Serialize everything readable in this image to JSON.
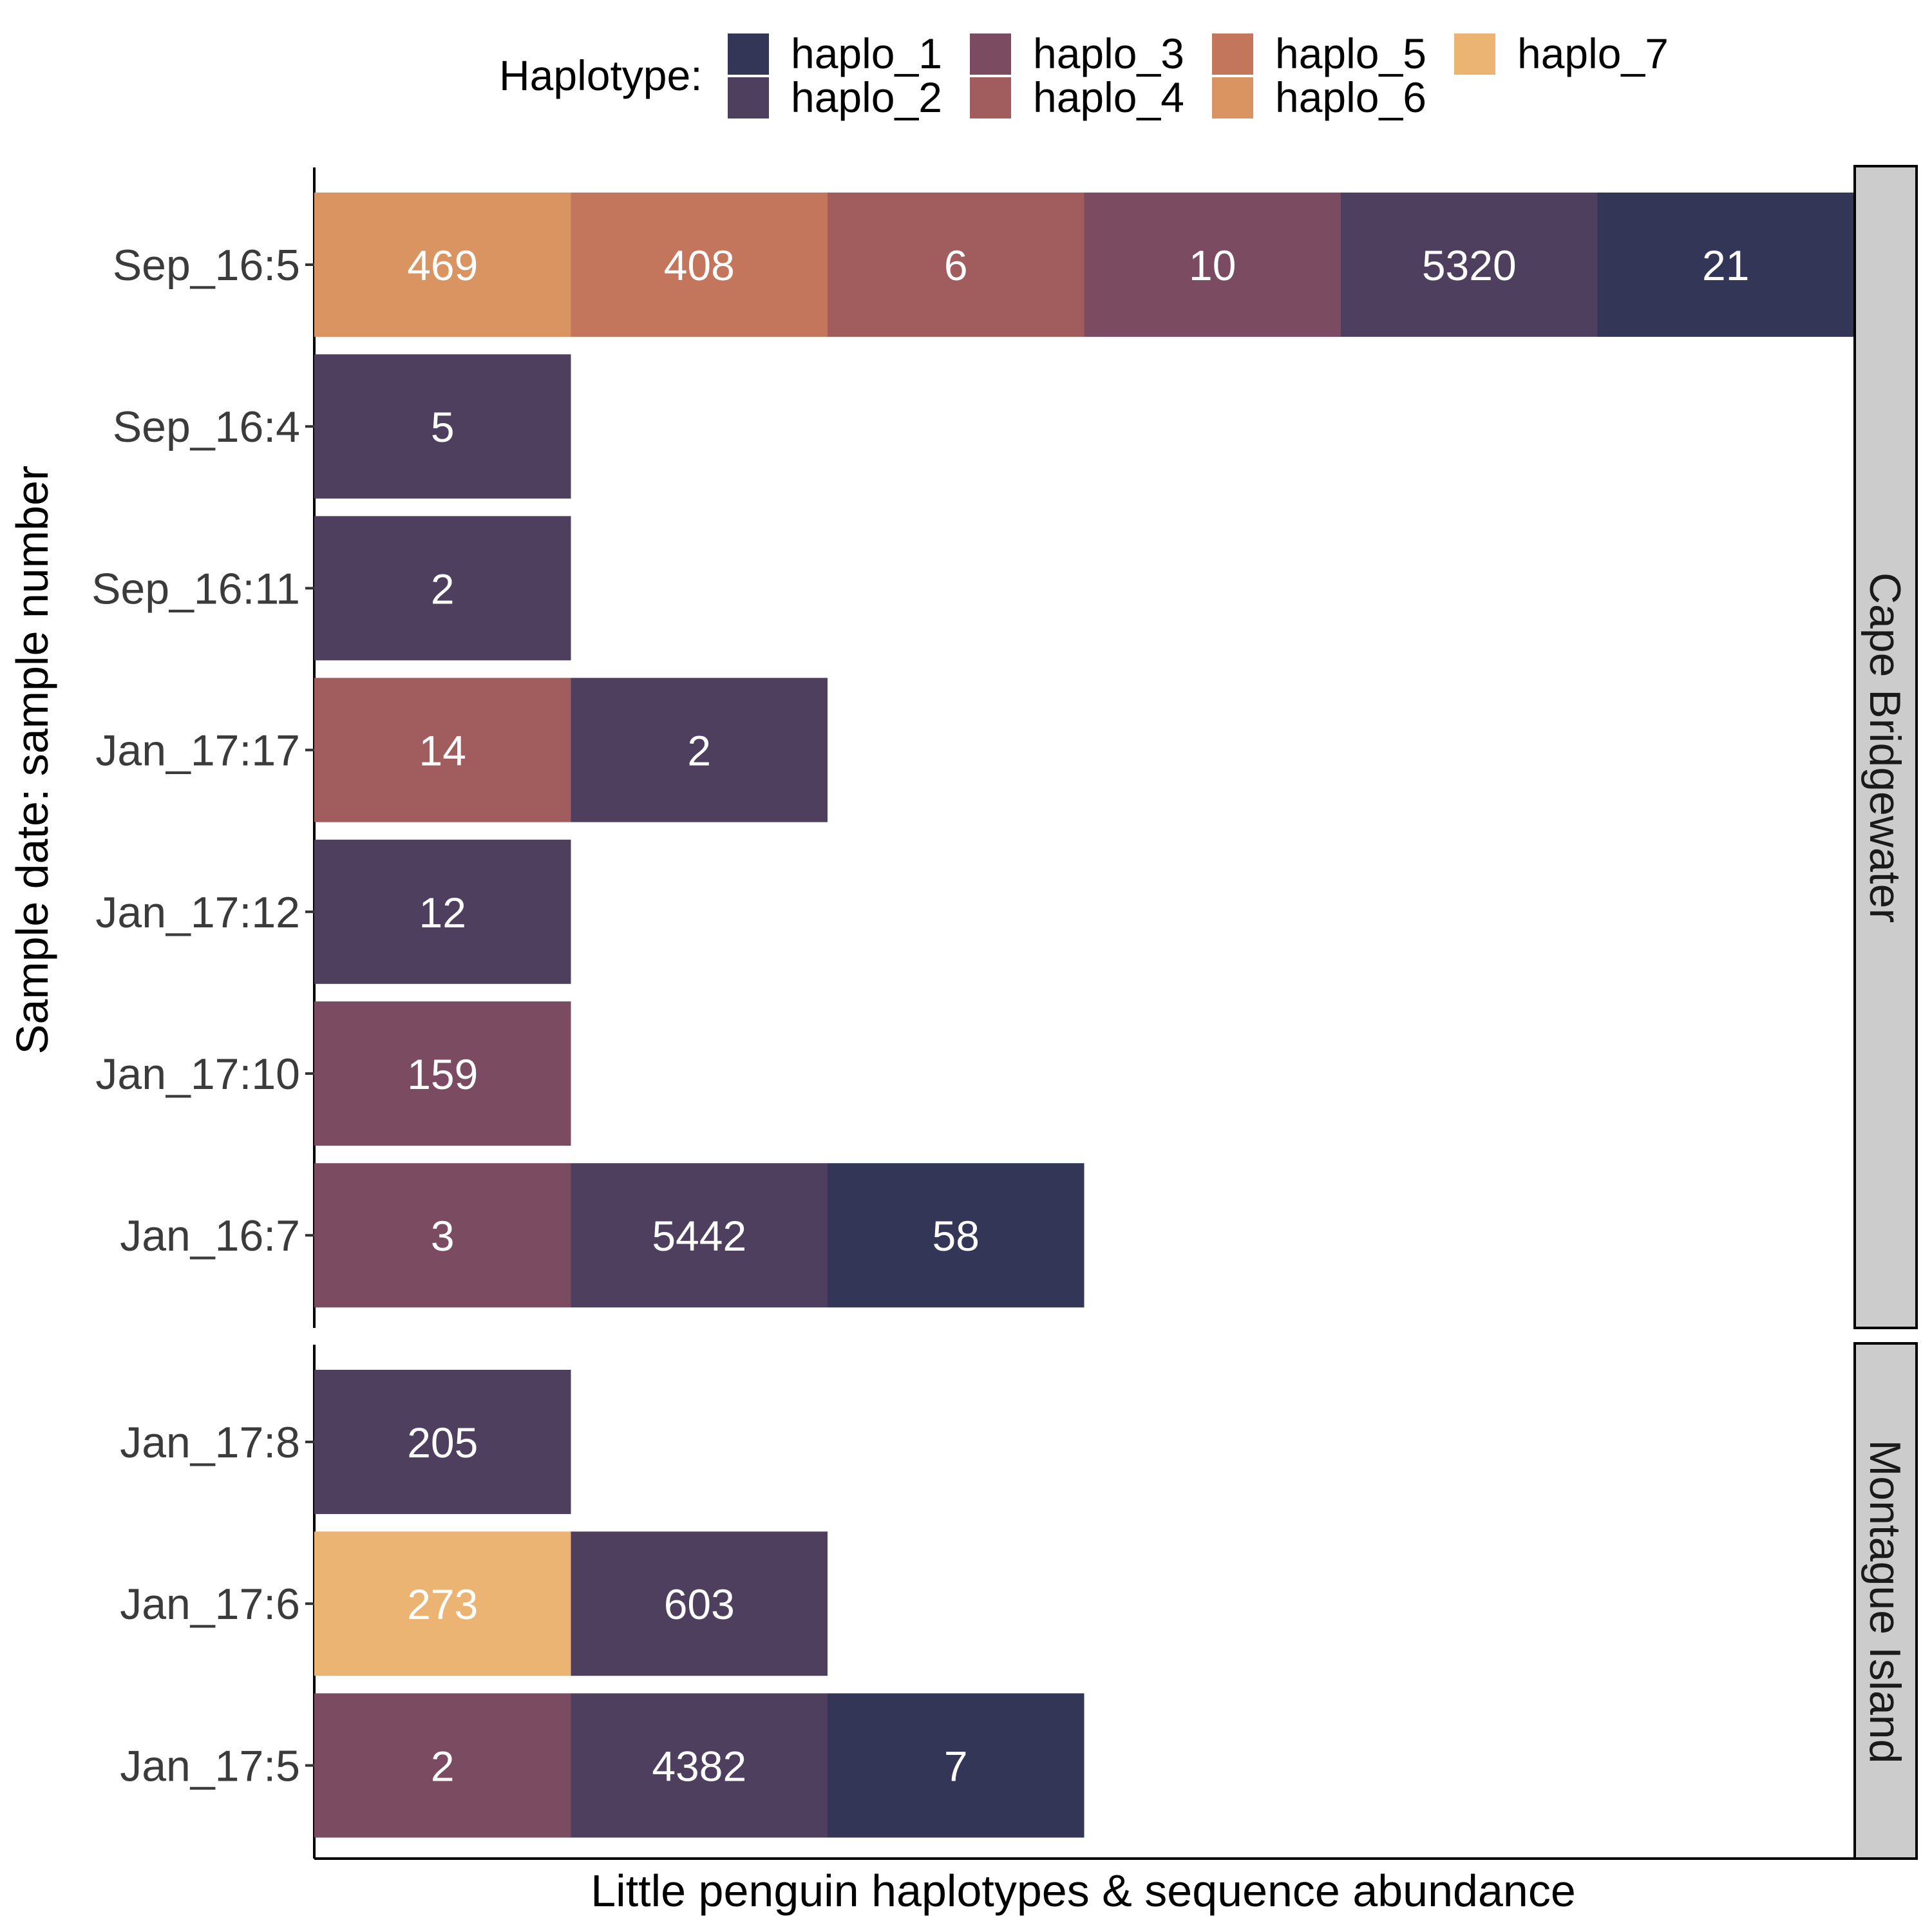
{
  "chart_data": {
    "type": "bar",
    "orientation": "horizontal",
    "xlabel": "Little penguin haplotypes & sequence abundance",
    "ylabel": "Sample date: sample number",
    "legend": {
      "title": "Haplotype:",
      "placement": "top",
      "entries": [
        {
          "name": "haplo_1",
          "color": "#333656"
        },
        {
          "name": "haplo_2",
          "color": "#4f3f5f"
        },
        {
          "name": "haplo_3",
          "color": "#7b4b62"
        },
        {
          "name": "haplo_4",
          "color": "#a15c5e"
        },
        {
          "name": "haplo_5",
          "color": "#c4765d"
        },
        {
          "name": "haplo_6",
          "color": "#d99461"
        },
        {
          "name": "haplo_7",
          "color": "#ebb473"
        }
      ]
    },
    "facets": [
      {
        "name": "Cape Bridgewater",
        "rows": [
          {
            "label": "Sep_16:5",
            "segments": [
              {
                "haplotype": "haplo_6",
                "value": 469
              },
              {
                "haplotype": "haplo_5",
                "value": 408
              },
              {
                "haplotype": "haplo_4",
                "value": 6
              },
              {
                "haplotype": "haplo_3",
                "value": 10
              },
              {
                "haplotype": "haplo_2",
                "value": 5320
              },
              {
                "haplotype": "haplo_1",
                "value": 21
              }
            ]
          },
          {
            "label": "Sep_16:4",
            "segments": [
              {
                "haplotype": "haplo_2",
                "value": 5
              }
            ]
          },
          {
            "label": "Sep_16:11",
            "segments": [
              {
                "haplotype": "haplo_2",
                "value": 2
              }
            ]
          },
          {
            "label": "Jan_17:17",
            "segments": [
              {
                "haplotype": "haplo_4",
                "value": 14
              },
              {
                "haplotype": "haplo_2",
                "value": 2
              }
            ]
          },
          {
            "label": "Jan_17:12",
            "segments": [
              {
                "haplotype": "haplo_2",
                "value": 12
              }
            ]
          },
          {
            "label": "Jan_17:10",
            "segments": [
              {
                "haplotype": "haplo_3",
                "value": 159
              }
            ]
          },
          {
            "label": "Jan_16:7",
            "segments": [
              {
                "haplotype": "haplo_3",
                "value": 3
              },
              {
                "haplotype": "haplo_2",
                "value": 5442
              },
              {
                "haplotype": "haplo_1",
                "value": 58
              }
            ]
          }
        ]
      },
      {
        "name": "Montague Island",
        "rows": [
          {
            "label": "Jan_17:8",
            "segments": [
              {
                "haplotype": "haplo_2",
                "value": 205
              }
            ]
          },
          {
            "label": "Jan_17:6",
            "segments": [
              {
                "haplotype": "haplo_7",
                "value": 273
              },
              {
                "haplotype": "haplo_2",
                "value": 603
              }
            ]
          },
          {
            "label": "Jan_17:5",
            "segments": [
              {
                "haplotype": "haplo_3",
                "value": 2
              },
              {
                "haplotype": "haplo_2",
                "value": 4382
              },
              {
                "haplotype": "haplo_1",
                "value": 7
              }
            ]
          }
        ]
      }
    ]
  }
}
